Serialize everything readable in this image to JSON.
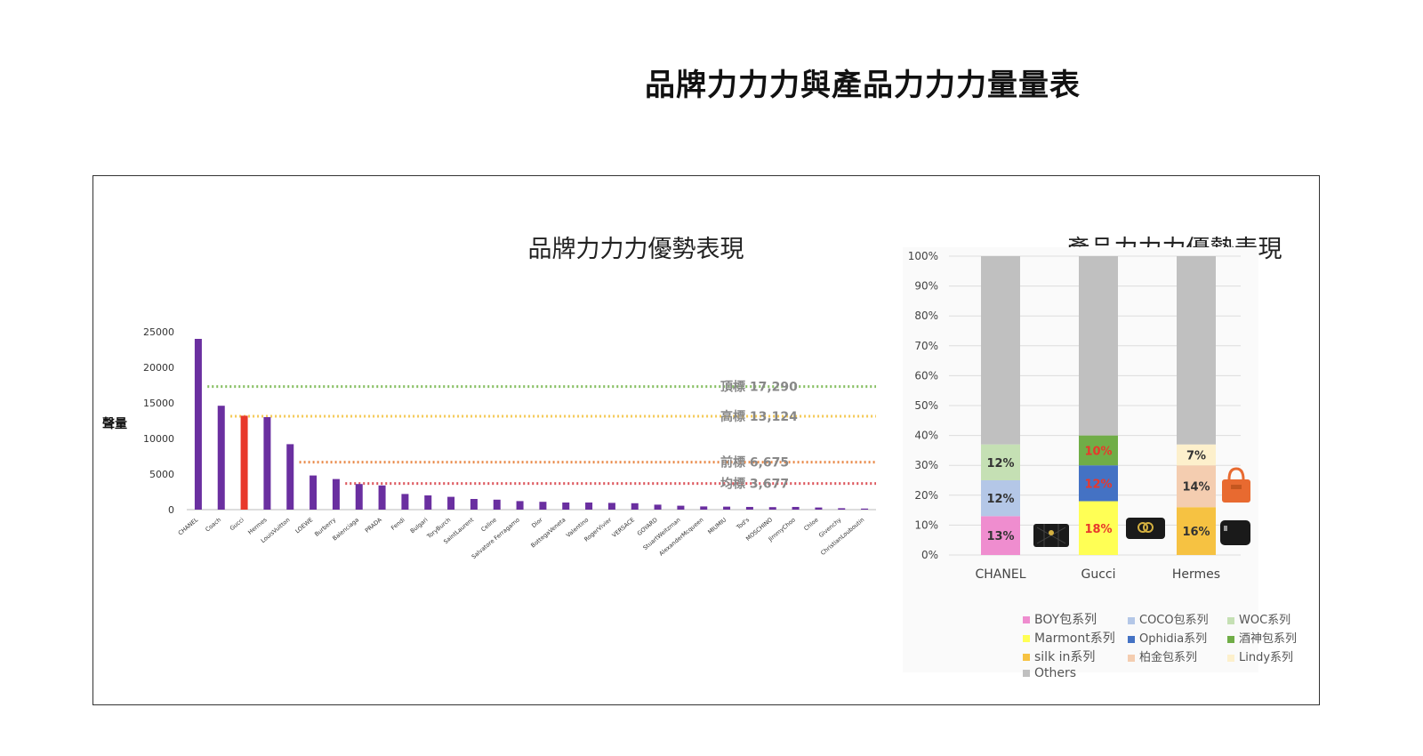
{
  "page_title": "品牌力力力與產品力力力量量表",
  "chart_data": [
    {
      "type": "bar",
      "title": "品牌力力力優勢表現",
      "ylabel": "聲量",
      "ylim": [
        0,
        25000
      ],
      "yticks": [
        0,
        5000,
        10000,
        15000,
        20000,
        25000
      ],
      "categories": [
        "CHANEL",
        "Coach",
        "Gucci",
        "Hermes",
        "LouisVuitton",
        "LOEWE",
        "Burberry",
        "Balenciaga",
        "PRADA",
        "Fendi",
        "Bulgari",
        "ToryBurch",
        "SaintLaurent",
        "Celine",
        "Salvatore Ferragamo",
        "Dior",
        "BottegaVeneta",
        "Valentino",
        "RogerVivier",
        "VERSACE",
        "GOYARD",
        "StuartWeitzman",
        "AlexanderMcqueen",
        "MIUMIU",
        "Tod's",
        "MOSCHINO",
        "JimmyChoo",
        "Chloe",
        "Givenchy",
        "ChristianLouboutin"
      ],
      "values": [
        24000,
        14600,
        13200,
        13000,
        9200,
        4800,
        4300,
        3600,
        3400,
        2200,
        2000,
        1800,
        1500,
        1400,
        1200,
        1100,
        1000,
        1000,
        950,
        900,
        700,
        550,
        450,
        420,
        380,
        350,
        380,
        300,
        200,
        150
      ],
      "highlight_category": "Gucci",
      "bar_color": "#6a2fa0",
      "highlight_color": "#e8382b",
      "reference_lines": [
        {
          "label": "頂標 17,290",
          "value": 17290,
          "color": "#7ab850"
        },
        {
          "label": "高標 13,124",
          "value": 13124,
          "color": "#f3c444"
        },
        {
          "label": "前標 6,675",
          "value": 6675,
          "color": "#e8803a"
        },
        {
          "label": "均標 3,677",
          "value": 3677,
          "color": "#d9434a"
        }
      ]
    },
    {
      "type": "bar",
      "stacked": true,
      "title": "產品力力力優勢表現",
      "ylim": [
        0,
        100
      ],
      "yticks": [
        "0%",
        "10%",
        "20%",
        "30%",
        "40%",
        "50%",
        "60%",
        "70%",
        "80%",
        "90%",
        "100%"
      ],
      "categories": [
        "CHANEL",
        "Gucci",
        "Hermes"
      ],
      "stacks": [
        [
          {
            "name": "BOY包系列",
            "value": 13,
            "label": "13%",
            "color": "#ef8dcf",
            "label_color": "#333333"
          },
          {
            "name": "COCO包系列",
            "value": 12,
            "label": "12%",
            "color": "#b4c7e7",
            "label_color": "#333333"
          },
          {
            "name": "WOC系列",
            "value": 12,
            "label": "12%",
            "color": "#c5e0b4",
            "label_color": "#333333"
          },
          {
            "name": "Others",
            "value": 63,
            "label": "",
            "color": "#c0c0c0",
            "label_color": "#333333"
          }
        ],
        [
          {
            "name": "Marmont系列",
            "value": 18,
            "label": "18%",
            "color": "#ffff55",
            "label_color": "#e8382b"
          },
          {
            "name": "Ophidia系列",
            "value": 12,
            "label": "12%",
            "color": "#4472c4",
            "label_color": "#e8382b"
          },
          {
            "name": "酒神包系列",
            "value": 10,
            "label": "10%",
            "color": "#70ad47",
            "label_color": "#e8382b"
          },
          {
            "name": "Others",
            "value": 60,
            "label": "",
            "color": "#c0c0c0",
            "label_color": "#333333"
          }
        ],
        [
          {
            "name": "silk in系列",
            "value": 16,
            "label": "16%",
            "color": "#f6c242",
            "label_color": "#333333"
          },
          {
            "name": "柏金包系列",
            "value": 14,
            "label": "14%",
            "color": "#f4cdb0",
            "label_color": "#333333"
          },
          {
            "name": "Lindy系列",
            "value": 7,
            "label": "7%",
            "color": "#fdf0cc",
            "label_color": "#333333"
          },
          {
            "name": "Others",
            "value": 63,
            "label": "",
            "color": "#c0c0c0",
            "label_color": "#333333"
          }
        ]
      ],
      "legend": [
        {
          "name": "BOY包系列",
          "color": "#ef8dcf"
        },
        {
          "name": "COCO包系列",
          "color": "#b4c7e7"
        },
        {
          "name": "WOC系列",
          "color": "#c5e0b4"
        },
        {
          "name": "Marmont系列",
          "color": "#ffff55"
        },
        {
          "name": "Ophidia系列",
          "color": "#4472c4"
        },
        {
          "name": "酒神包系列",
          "color": "#70ad47"
        },
        {
          "name": "silk in系列",
          "color": "#f6c242"
        },
        {
          "name": "柏金包系列",
          "color": "#f4cdb0"
        },
        {
          "name": "Lindy系列",
          "color": "#fdf0cc"
        },
        {
          "name": "Others",
          "color": "#c0c0c0"
        }
      ],
      "legend_position": "bottom"
    }
  ]
}
